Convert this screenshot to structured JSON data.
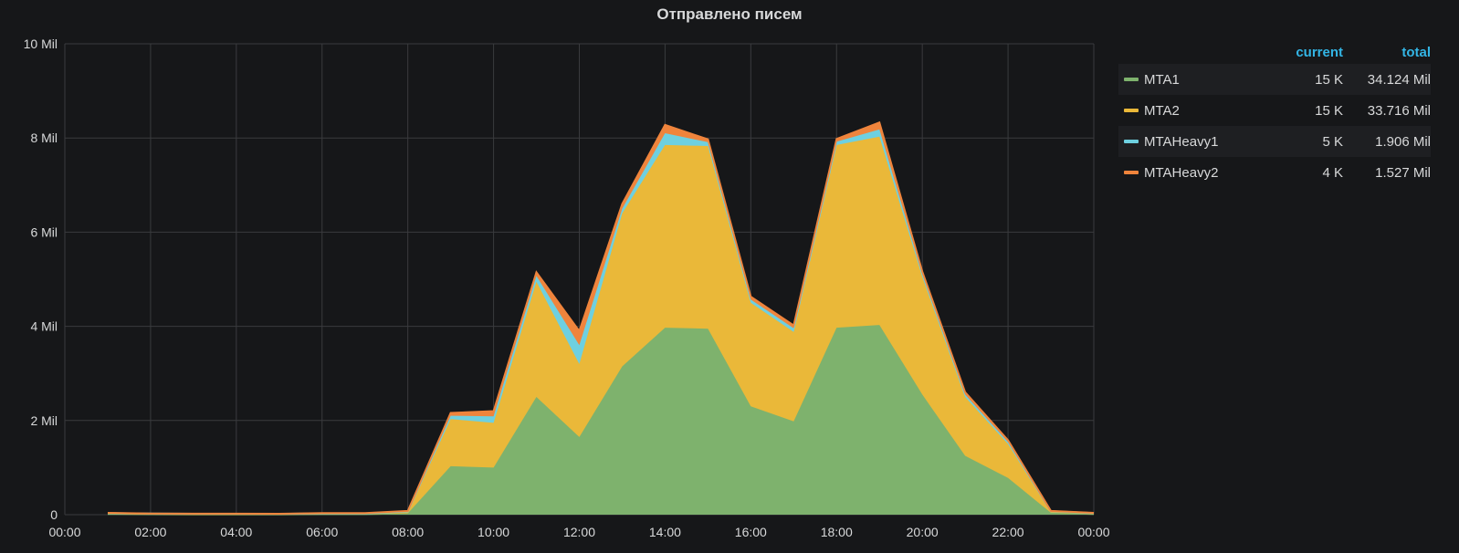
{
  "panel": {
    "title": "Отправлено писем"
  },
  "legend": {
    "current_header": "current",
    "total_header": "total",
    "rows": [
      {
        "name": "MTA1",
        "current": "15 K",
        "total": "34.124 Mil",
        "color": "#7eb26d"
      },
      {
        "name": "MTA2",
        "current": "15 K",
        "total": "33.716 Mil",
        "color": "#eab839"
      },
      {
        "name": "MTAHeavy1",
        "current": "5 K",
        "total": "1.906 Mil",
        "color": "#6ed0e0"
      },
      {
        "name": "MTAHeavy2",
        "current": "4 K",
        "total": "1.527 Mil",
        "color": "#ef843c"
      }
    ]
  },
  "chart_data": {
    "type": "area",
    "stacked": true,
    "title": "Отправлено писем",
    "x": [
      "01:00",
      "02:00",
      "03:00",
      "04:00",
      "05:00",
      "06:00",
      "07:00",
      "08:00",
      "09:00",
      "10:00",
      "11:00",
      "12:00",
      "13:00",
      "14:00",
      "15:00",
      "16:00",
      "17:00",
      "18:00",
      "19:00",
      "20:00",
      "21:00",
      "22:00",
      "23:00",
      "00:00"
    ],
    "x_hours": [
      1,
      2,
      3,
      4,
      5,
      6,
      7,
      8,
      9,
      10,
      11,
      12,
      13,
      14,
      15,
      16,
      17,
      18,
      19,
      20,
      21,
      22,
      23,
      24
    ],
    "xlim_hours": [
      0,
      24
    ],
    "x_tick_labels": [
      "00:00",
      "02:00",
      "04:00",
      "06:00",
      "08:00",
      "10:00",
      "12:00",
      "14:00",
      "16:00",
      "18:00",
      "20:00",
      "22:00",
      "00:00"
    ],
    "y_tick_labels": [
      "0",
      "2 Mil",
      "4 Mil",
      "6 Mil",
      "8 Mil",
      "10 Mil"
    ],
    "y_ticks": [
      0,
      2000000,
      4000000,
      6000000,
      8000000,
      10000000
    ],
    "ylim": [
      0,
      10000000
    ],
    "grid": true,
    "legend_position": "right",
    "series": [
      {
        "name": "MTA1",
        "color": "#7eb26d",
        "values": [
          15000,
          10000,
          8000,
          8000,
          7000,
          12000,
          12000,
          30000,
          1030000,
          1000000,
          2500000,
          1650000,
          3150000,
          3970000,
          3950000,
          2300000,
          1980000,
          3970000,
          4030000,
          2550000,
          1250000,
          780000,
          40000,
          15000
        ]
      },
      {
        "name": "MTA2",
        "color": "#eab839",
        "values": [
          15000,
          10000,
          8000,
          8000,
          7000,
          12000,
          12000,
          30000,
          1000000,
          950000,
          2450000,
          1550000,
          3250000,
          3880000,
          3880000,
          2200000,
          1900000,
          3880000,
          4000000,
          2500000,
          1250000,
          720000,
          30000,
          15000
        ]
      },
      {
        "name": "MTAHeavy1",
        "color": "#6ed0e0",
        "values": [
          5000,
          3000,
          3000,
          3000,
          3000,
          4000,
          4000,
          10000,
          70000,
          140000,
          120000,
          400000,
          100000,
          250000,
          80000,
          70000,
          80000,
          70000,
          150000,
          60000,
          50000,
          40000,
          5000,
          5000
        ]
      },
      {
        "name": "MTAHeavy2",
        "color": "#ef843c",
        "values": [
          4000,
          3000,
          3000,
          3000,
          3000,
          4000,
          4000,
          10000,
          60000,
          110000,
          80000,
          300000,
          100000,
          180000,
          60000,
          60000,
          60000,
          60000,
          150000,
          50000,
          50000,
          40000,
          5000,
          4000
        ]
      }
    ]
  }
}
